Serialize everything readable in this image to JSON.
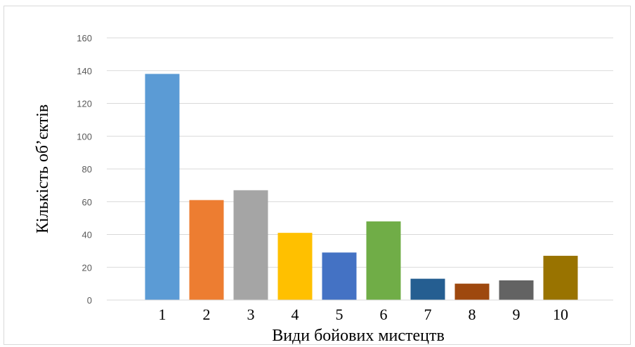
{
  "chart_data": {
    "type": "bar",
    "categories": [
      "1",
      "2",
      "3",
      "4",
      "5",
      "6",
      "7",
      "8",
      "9",
      "10"
    ],
    "values": [
      138,
      61,
      67,
      41,
      29,
      48,
      13,
      10,
      12,
      27
    ],
    "colors": [
      "#5b9bd5",
      "#ed7d31",
      "#a5a5a5",
      "#ffc000",
      "#4472c4",
      "#70ad47",
      "#255e91",
      "#9e480e",
      "#636363",
      "#997300"
    ],
    "xlabel": "Види бойових мистецтв",
    "ylabel": "Кількість об’єктів",
    "ylim": [
      0,
      160
    ],
    "yticks": [
      0,
      20,
      40,
      60,
      80,
      100,
      120,
      140,
      160
    ],
    "grid": true,
    "legend": "none"
  }
}
